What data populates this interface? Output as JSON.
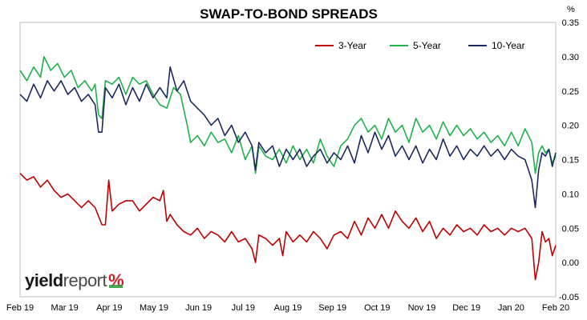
{
  "chart_data": {
    "type": "line",
    "title": "SWAP-TO-BOND SPREADS",
    "yunit": "%",
    "ylim": [
      -0.05,
      0.35
    ],
    "yticks": [
      "-0.05",
      "0.00",
      "0.05",
      "0.10",
      "0.15",
      "0.20",
      "0.25",
      "0.30",
      "0.35"
    ],
    "xlabels": [
      "Feb 19",
      "Mar 19",
      "Apr 19",
      "May 19",
      "Jun 19",
      "Jul 19",
      "Aug 19",
      "Sep 19",
      "Oct 19",
      "Nov 19",
      "Dec 19",
      "Jan 20",
      "Feb 20"
    ],
    "grid": false,
    "legend_position": "top-right",
    "series": [
      {
        "name": "3-Year",
        "color": "#c00000",
        "values": [
          [
            0,
            0.13
          ],
          [
            4,
            0.12
          ],
          [
            8,
            0.125
          ],
          [
            12,
            0.11
          ],
          [
            16,
            0.12
          ],
          [
            20,
            0.105
          ],
          [
            24,
            0.095
          ],
          [
            28,
            0.1
          ],
          [
            32,
            0.09
          ],
          [
            36,
            0.08
          ],
          [
            40,
            0.09
          ],
          [
            44,
            0.08
          ],
          [
            48,
            0.055
          ],
          [
            50,
            0.055
          ],
          [
            52,
            0.12
          ],
          [
            54,
            0.075
          ],
          [
            58,
            0.085
          ],
          [
            62,
            0.09
          ],
          [
            66,
            0.09
          ],
          [
            70,
            0.075
          ],
          [
            74,
            0.085
          ],
          [
            78,
            0.095
          ],
          [
            82,
            0.09
          ],
          [
            84,
            0.105
          ],
          [
            86,
            0.06
          ],
          [
            88,
            0.07
          ],
          [
            92,
            0.055
          ],
          [
            96,
            0.045
          ],
          [
            100,
            0.04
          ],
          [
            104,
            0.05
          ],
          [
            108,
            0.035
          ],
          [
            112,
            0.045
          ],
          [
            116,
            0.04
          ],
          [
            120,
            0.03
          ],
          [
            124,
            0.045
          ],
          [
            128,
            0.03
          ],
          [
            132,
            0.035
          ],
          [
            136,
            0.02
          ],
          [
            138,
            0.0
          ],
          [
            140,
            0.04
          ],
          [
            144,
            0.035
          ],
          [
            148,
            0.025
          ],
          [
            152,
            0.035
          ],
          [
            154,
            0.01
          ],
          [
            156,
            0.045
          ],
          [
            160,
            0.03
          ],
          [
            164,
            0.04
          ],
          [
            168,
            0.03
          ],
          [
            172,
            0.045
          ],
          [
            176,
            0.035
          ],
          [
            180,
            0.02
          ],
          [
            184,
            0.04
          ],
          [
            188,
            0.045
          ],
          [
            192,
            0.035
          ],
          [
            196,
            0.06
          ],
          [
            200,
            0.04
          ],
          [
            204,
            0.065
          ],
          [
            208,
            0.05
          ],
          [
            212,
            0.07
          ],
          [
            216,
            0.05
          ],
          [
            220,
            0.075
          ],
          [
            224,
            0.06
          ],
          [
            228,
            0.05
          ],
          [
            232,
            0.065
          ],
          [
            236,
            0.045
          ],
          [
            240,
            0.06
          ],
          [
            244,
            0.035
          ],
          [
            248,
            0.05
          ],
          [
            252,
            0.04
          ],
          [
            256,
            0.055
          ],
          [
            260,
            0.045
          ],
          [
            264,
            0.05
          ],
          [
            268,
            0.04
          ],
          [
            272,
            0.055
          ],
          [
            276,
            0.045
          ],
          [
            280,
            0.05
          ],
          [
            284,
            0.04
          ],
          [
            288,
            0.05
          ],
          [
            292,
            0.045
          ],
          [
            296,
            0.05
          ],
          [
            300,
            0.035
          ],
          [
            302,
            -0.025
          ],
          [
            304,
            0.0
          ],
          [
            306,
            0.045
          ],
          [
            308,
            0.03
          ],
          [
            310,
            0.035
          ],
          [
            312,
            0.01
          ],
          [
            314,
            0.025
          ]
        ]
      },
      {
        "name": "5-Year",
        "color": "#1fb24a",
        "values": [
          [
            0,
            0.28
          ],
          [
            4,
            0.265
          ],
          [
            8,
            0.285
          ],
          [
            12,
            0.27
          ],
          [
            14,
            0.3
          ],
          [
            18,
            0.28
          ],
          [
            22,
            0.29
          ],
          [
            26,
            0.27
          ],
          [
            30,
            0.28
          ],
          [
            34,
            0.255
          ],
          [
            38,
            0.265
          ],
          [
            42,
            0.25
          ],
          [
            44,
            0.26
          ],
          [
            46,
            0.215
          ],
          [
            48,
            0.21
          ],
          [
            50,
            0.265
          ],
          [
            54,
            0.26
          ],
          [
            58,
            0.27
          ],
          [
            62,
            0.245
          ],
          [
            66,
            0.27
          ],
          [
            70,
            0.26
          ],
          [
            74,
            0.265
          ],
          [
            78,
            0.245
          ],
          [
            82,
            0.23
          ],
          [
            86,
            0.225
          ],
          [
            90,
            0.255
          ],
          [
            94,
            0.245
          ],
          [
            98,
            0.2
          ],
          [
            100,
            0.175
          ],
          [
            104,
            0.185
          ],
          [
            108,
            0.17
          ],
          [
            112,
            0.19
          ],
          [
            116,
            0.175
          ],
          [
            120,
            0.18
          ],
          [
            124,
            0.16
          ],
          [
            128,
            0.185
          ],
          [
            132,
            0.15
          ],
          [
            136,
            0.17
          ],
          [
            138,
            0.13
          ],
          [
            140,
            0.17
          ],
          [
            144,
            0.155
          ],
          [
            148,
            0.15
          ],
          [
            152,
            0.165
          ],
          [
            156,
            0.145
          ],
          [
            160,
            0.17
          ],
          [
            164,
            0.15
          ],
          [
            168,
            0.165
          ],
          [
            172,
            0.145
          ],
          [
            176,
            0.18
          ],
          [
            180,
            0.155
          ],
          [
            184,
            0.14
          ],
          [
            188,
            0.17
          ],
          [
            192,
            0.18
          ],
          [
            196,
            0.2
          ],
          [
            200,
            0.21
          ],
          [
            204,
            0.19
          ],
          [
            208,
            0.2
          ],
          [
            212,
            0.18
          ],
          [
            216,
            0.21
          ],
          [
            220,
            0.19
          ],
          [
            224,
            0.2
          ],
          [
            228,
            0.175
          ],
          [
            232,
            0.21
          ],
          [
            236,
            0.19
          ],
          [
            240,
            0.2
          ],
          [
            244,
            0.18
          ],
          [
            248,
            0.205
          ],
          [
            252,
            0.185
          ],
          [
            256,
            0.2
          ],
          [
            260,
            0.185
          ],
          [
            264,
            0.195
          ],
          [
            268,
            0.18
          ],
          [
            272,
            0.19
          ],
          [
            276,
            0.175
          ],
          [
            280,
            0.185
          ],
          [
            284,
            0.17
          ],
          [
            288,
            0.19
          ],
          [
            292,
            0.17
          ],
          [
            296,
            0.195
          ],
          [
            300,
            0.175
          ],
          [
            302,
            0.13
          ],
          [
            304,
            0.16
          ],
          [
            306,
            0.17
          ],
          [
            308,
            0.16
          ],
          [
            310,
            0.165
          ],
          [
            312,
            0.145
          ],
          [
            314,
            0.155
          ]
        ]
      },
      {
        "name": "10-Year",
        "color": "#1c2a62",
        "values": [
          [
            0,
            0.245
          ],
          [
            4,
            0.235
          ],
          [
            8,
            0.26
          ],
          [
            12,
            0.24
          ],
          [
            16,
            0.265
          ],
          [
            20,
            0.25
          ],
          [
            24,
            0.265
          ],
          [
            28,
            0.245
          ],
          [
            32,
            0.255
          ],
          [
            36,
            0.235
          ],
          [
            40,
            0.245
          ],
          [
            44,
            0.23
          ],
          [
            46,
            0.19
          ],
          [
            48,
            0.19
          ],
          [
            50,
            0.255
          ],
          [
            54,
            0.24
          ],
          [
            58,
            0.26
          ],
          [
            62,
            0.23
          ],
          [
            66,
            0.255
          ],
          [
            70,
            0.235
          ],
          [
            74,
            0.26
          ],
          [
            78,
            0.24
          ],
          [
            82,
            0.255
          ],
          [
            86,
            0.24
          ],
          [
            88,
            0.285
          ],
          [
            92,
            0.25
          ],
          [
            96,
            0.265
          ],
          [
            100,
            0.235
          ],
          [
            104,
            0.225
          ],
          [
            108,
            0.215
          ],
          [
            112,
            0.2
          ],
          [
            116,
            0.21
          ],
          [
            120,
            0.185
          ],
          [
            124,
            0.2
          ],
          [
            128,
            0.175
          ],
          [
            132,
            0.19
          ],
          [
            136,
            0.17
          ],
          [
            138,
            0.135
          ],
          [
            140,
            0.175
          ],
          [
            144,
            0.16
          ],
          [
            148,
            0.17
          ],
          [
            152,
            0.14
          ],
          [
            156,
            0.165
          ],
          [
            160,
            0.15
          ],
          [
            164,
            0.165
          ],
          [
            168,
            0.14
          ],
          [
            172,
            0.155
          ],
          [
            176,
            0.165
          ],
          [
            180,
            0.145
          ],
          [
            184,
            0.16
          ],
          [
            188,
            0.15
          ],
          [
            192,
            0.17
          ],
          [
            196,
            0.145
          ],
          [
            200,
            0.185
          ],
          [
            204,
            0.16
          ],
          [
            208,
            0.19
          ],
          [
            212,
            0.165
          ],
          [
            216,
            0.185
          ],
          [
            220,
            0.155
          ],
          [
            224,
            0.17
          ],
          [
            228,
            0.15
          ],
          [
            232,
            0.17
          ],
          [
            236,
            0.145
          ],
          [
            240,
            0.165
          ],
          [
            244,
            0.15
          ],
          [
            248,
            0.18
          ],
          [
            252,
            0.155
          ],
          [
            256,
            0.17
          ],
          [
            260,
            0.15
          ],
          [
            264,
            0.165
          ],
          [
            268,
            0.155
          ],
          [
            272,
            0.17
          ],
          [
            276,
            0.155
          ],
          [
            280,
            0.165
          ],
          [
            284,
            0.15
          ],
          [
            288,
            0.165
          ],
          [
            292,
            0.155
          ],
          [
            296,
            0.15
          ],
          [
            298,
            0.135
          ],
          [
            300,
            0.12
          ],
          [
            302,
            0.08
          ],
          [
            304,
            0.135
          ],
          [
            306,
            0.16
          ],
          [
            308,
            0.155
          ],
          [
            310,
            0.165
          ],
          [
            312,
            0.14
          ],
          [
            314,
            0.16
          ]
        ]
      }
    ]
  },
  "branding": {
    "logo_word1": "yield",
    "logo_word2": "report",
    "logo_mark": "%"
  }
}
